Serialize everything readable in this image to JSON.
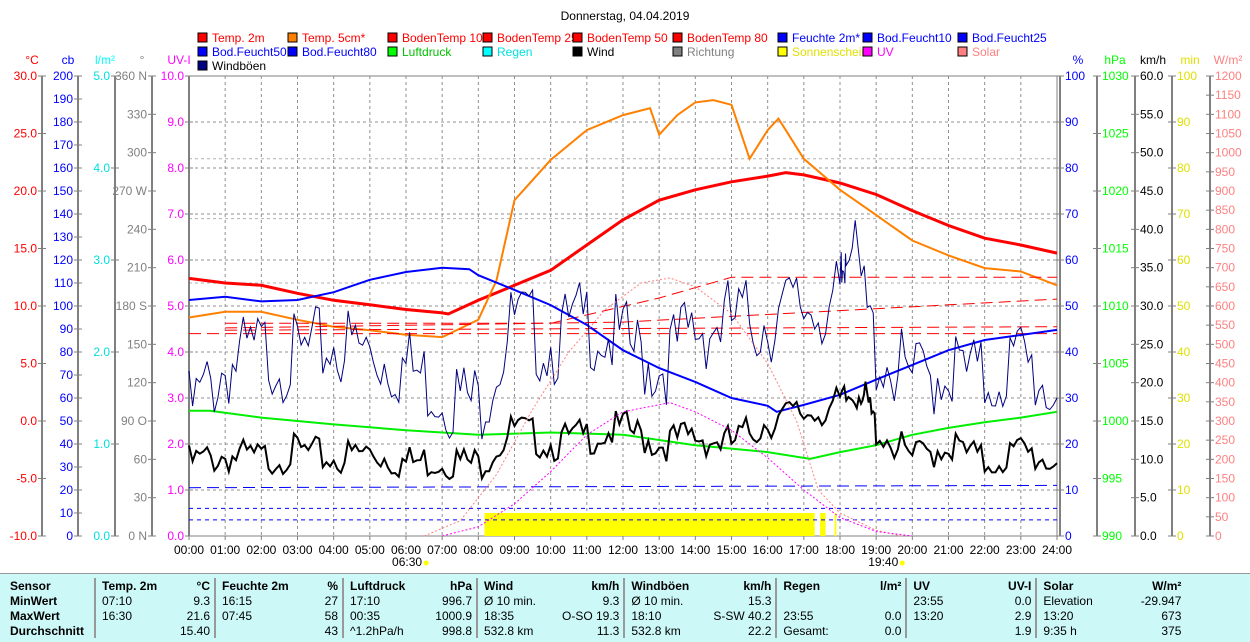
{
  "title": "Donnerstag, 04.04.2019",
  "legend": [
    {
      "label": "Temp. 2m",
      "color": "#ff0000",
      "text": "#ff0000"
    },
    {
      "label": "Temp. 5cm*",
      "color": "#ff8000",
      "text": "#ff0000"
    },
    {
      "label": "BodenTemp 10",
      "color": "#ff0000",
      "text": "#ff0000"
    },
    {
      "label": "BodenTemp 25",
      "color": "#ff0000",
      "text": "#ff0000"
    },
    {
      "label": "BodenTemp 50",
      "color": "#ff0000",
      "text": "#ff0000"
    },
    {
      "label": "BodenTemp 80",
      "color": "#ff0000",
      "text": "#ff0000"
    },
    {
      "label": "Feuchte 2m*",
      "color": "#0000ff",
      "text": "#0000ff"
    },
    {
      "label": "Bod.Feucht10",
      "color": "#0000ff",
      "text": "#0000ff"
    },
    {
      "label": "Bod.Feucht25",
      "color": "#0000ff",
      "text": "#0000ff"
    },
    {
      "label": "Bod.Feucht50",
      "color": "#0000ff",
      "text": "#0000ff"
    },
    {
      "label": "Bod.Feucht80",
      "color": "#0000ff",
      "text": "#0000ff"
    },
    {
      "label": "Luftdruck",
      "color": "#00ff00",
      "text": "#00c000"
    },
    {
      "label": "Regen",
      "color": "#00ffff",
      "text": "#00e0e0"
    },
    {
      "label": "Wind",
      "color": "#000000",
      "text": "#000000"
    },
    {
      "label": "Richtung",
      "color": "#808080",
      "text": "#808080"
    },
    {
      "label": "Sonnenschein",
      "color": "#ffff00",
      "text": "#e0e000"
    },
    {
      "label": "UV",
      "color": "#ff00ff",
      "text": "#ff00ff"
    },
    {
      "label": "Solar",
      "color": "#ff8080",
      "text": "#ff8080"
    },
    {
      "label": "Windböen",
      "color": "#000080",
      "text": "#000000"
    }
  ],
  "chart_data": {
    "type": "line",
    "title": "Donnerstag, 04.04.2019",
    "x_ticks": [
      "00:00",
      "01:00",
      "02:00",
      "03:00",
      "04:00",
      "05:00",
      "06:00",
      "07:00",
      "08:00",
      "09:00",
      "10:00",
      "11:00",
      "12:00",
      "13:00",
      "14:00",
      "15:00",
      "16:00",
      "17:00",
      "18:00",
      "19:00",
      "20:00",
      "21:00",
      "22:00",
      "23:00",
      "24:00"
    ],
    "sunrise": "06:30",
    "sunset": "19:40",
    "axes": {
      "temp": {
        "unit": "°C",
        "min": -10,
        "max": 30,
        "step": 5,
        "dec": 1,
        "color": "#ff0000"
      },
      "cb": {
        "unit": "cb",
        "min": 0,
        "max": 200,
        "step": 10,
        "dec": 0,
        "color": "#0000ff"
      },
      "rain": {
        "unit": "l/m²",
        "min": 0,
        "max": 5,
        "step": 1,
        "dec": 1,
        "color": "#00ffff"
      },
      "dir": {
        "unit": "°",
        "min": 0,
        "max": 360,
        "step": 30,
        "dec": 0,
        "color": "#808080",
        "compass": {
          "0": "N",
          "90": "O",
          "180": "S",
          "270": "W",
          "360": "N"
        }
      },
      "uv": {
        "unit": "UV-I",
        "min": 0,
        "max": 10,
        "step": 1,
        "dec": 1,
        "color": "#ff00ff"
      },
      "hum": {
        "unit": "%",
        "min": 0,
        "max": 100,
        "step": 10,
        "dec": 0,
        "color": "#0000ff"
      },
      "press": {
        "unit": "hPa",
        "min": 990,
        "max": 1030,
        "step": 5,
        "dec": 0,
        "color": "#00ff00"
      },
      "wind": {
        "unit": "km/h",
        "min": 0,
        "max": 60,
        "step": 5,
        "dec": 1,
        "color": "#000000"
      },
      "sun": {
        "unit": "min",
        "min": 0,
        "max": 100,
        "step": 10,
        "dec": 0,
        "color": "#ffff00"
      },
      "solar": {
        "unit": "W/m²",
        "min": 0,
        "max": 1200,
        "step": 50,
        "dec": 0,
        "color": "#ff8080"
      }
    },
    "series": [
      {
        "name": "Temp. 2m",
        "axis": "temp",
        "color": "#ff0000",
        "width": 3,
        "x": [
          0,
          1,
          2,
          3,
          4,
          5,
          6,
          7,
          7.17,
          8,
          9,
          10,
          11,
          12,
          13,
          14,
          15,
          16,
          16.5,
          17,
          18,
          19,
          20,
          21,
          22,
          23,
          24
        ],
        "y": [
          12.4,
          12.0,
          11.8,
          11.1,
          10.5,
          10.1,
          9.7,
          9.4,
          9.3,
          10.5,
          11.8,
          13.1,
          15.3,
          17.5,
          19.2,
          20.1,
          20.8,
          21.3,
          21.6,
          21.4,
          20.7,
          19.7,
          18.3,
          17.0,
          15.9,
          15.3,
          14.6
        ]
      },
      {
        "name": "Temp. 5cm*",
        "axis": "temp",
        "color": "#ff8000",
        "width": 2,
        "x": [
          0,
          1,
          2,
          3,
          4,
          5,
          6,
          7,
          8,
          8.5,
          9,
          10,
          11,
          12,
          12.75,
          13,
          13.5,
          14,
          14.5,
          15,
          15.5,
          16,
          16.3,
          17,
          18,
          19,
          20,
          21,
          22,
          23,
          24
        ],
        "y": [
          9.0,
          9.5,
          9.5,
          8.8,
          8.2,
          7.9,
          7.5,
          7.3,
          8.8,
          12.2,
          19.2,
          22.7,
          25.3,
          26.6,
          27.2,
          24.9,
          26.6,
          27.7,
          27.9,
          27.5,
          22.8,
          25.3,
          26.3,
          22.8,
          20.1,
          17.9,
          15.7,
          14.4,
          13.3,
          13.0,
          11.8
        ]
      },
      {
        "name": "BodenTemp 10",
        "axis": "temp",
        "color": "#ff0000",
        "width": 1,
        "dash": "12,6",
        "x": [
          1,
          10,
          13,
          15,
          24
        ],
        "y": [
          8.5,
          8.5,
          10.7,
          12.5,
          12.5
        ]
      },
      {
        "name": "BodenTemp 25",
        "axis": "temp",
        "color": "#ff0000",
        "width": 1,
        "dash": "12,6",
        "x": [
          1,
          12,
          24
        ],
        "y": [
          8.1,
          8.6,
          10.6
        ]
      },
      {
        "name": "BodenTemp 50",
        "axis": "temp",
        "color": "#ff0000",
        "width": 1,
        "dash": "12,6",
        "x": [
          1,
          24
        ],
        "y": [
          7.9,
          8.2
        ]
      },
      {
        "name": "BodenTemp 80",
        "axis": "temp",
        "color": "#ff0000",
        "width": 1,
        "dash": "12,6",
        "x": [
          0,
          24
        ],
        "y": [
          7.6,
          7.6
        ]
      },
      {
        "name": "Feuchte 2m*",
        "axis": "hum",
        "color": "#0000ff",
        "width": 2,
        "x": [
          0,
          1,
          2,
          3,
          4,
          5,
          6,
          7,
          7.75,
          8,
          9,
          10,
          11,
          12,
          13,
          14,
          15,
          16,
          16.25,
          17,
          18,
          19,
          20,
          21,
          22,
          23,
          24
        ],
        "y": [
          51.3,
          52,
          51,
          51.3,
          53,
          55.7,
          57.4,
          58.3,
          58,
          56.7,
          53.5,
          50.2,
          45.9,
          40.4,
          36.5,
          33.5,
          30,
          28.3,
          27,
          28.5,
          30.7,
          34,
          37.2,
          40.4,
          42.6,
          43.7,
          44.8
        ]
      },
      {
        "name": "Bod.Feucht10",
        "axis": "cb",
        "color": "#0000ff",
        "width": 1,
        "dash": "12,6",
        "x": [
          0,
          24
        ],
        "y": [
          21,
          22
        ]
      },
      {
        "name": "Bod.Feucht50",
        "axis": "cb",
        "color": "#0000ff",
        "width": 1,
        "dash": "4,4",
        "x": [
          0,
          24
        ],
        "y": [
          12,
          12
        ]
      },
      {
        "name": "Bod.Feucht80",
        "axis": "cb",
        "color": "#0000ff",
        "width": 1,
        "dash": "4,4",
        "x": [
          0,
          24
        ],
        "y": [
          7,
          7
        ]
      },
      {
        "name": "Luftdruck",
        "axis": "press",
        "color": "#00ee00",
        "width": 2,
        "x": [
          0,
          0.58,
          2,
          4,
          6,
          8,
          10,
          12,
          14,
          16,
          17.17,
          18,
          19,
          20,
          21,
          22,
          23,
          24
        ],
        "y": [
          1000.9,
          1000.9,
          1000.3,
          999.7,
          999.2,
          998.8,
          999,
          998.8,
          997.9,
          997.3,
          996.7,
          997.3,
          997.9,
          998.8,
          999.4,
          999.9,
          1000.3,
          1000.8
        ]
      },
      {
        "name": "Windböen",
        "axis": "wind",
        "color": "#000080",
        "width": 1,
        "noise": 6,
        "x": [
          0,
          1,
          2,
          3,
          4,
          5,
          6,
          7,
          8,
          9,
          10,
          11,
          12,
          13,
          14,
          15,
          16,
          17,
          18,
          18.17,
          19,
          20,
          21,
          22,
          23,
          24
        ],
        "y": [
          16,
          22,
          24,
          23,
          25,
          24,
          22,
          19,
          17,
          28,
          25,
          28,
          25,
          22,
          27,
          28,
          28,
          30,
          30,
          40.2,
          24,
          20,
          22,
          20,
          23,
          18
        ]
      },
      {
        "name": "Wind",
        "axis": "wind",
        "color": "#000000",
        "width": 2,
        "noise": 2.5,
        "x": [
          0,
          1,
          2,
          3,
          4,
          5,
          6,
          7,
          8,
          9,
          10,
          11,
          12,
          13,
          14,
          15,
          16,
          17,
          18,
          18.58,
          19,
          20,
          21,
          22,
          23,
          24
        ],
        "y": [
          9.5,
          10.5,
          10,
          11,
          10,
          11,
          9.5,
          10,
          9.3,
          14,
          12,
          13,
          14,
          12,
          13,
          12,
          15,
          16,
          17,
          19.3,
          14,
          10,
          12,
          9.5,
          11,
          9.5
        ]
      },
      {
        "name": "Solar",
        "axis": "solar",
        "color": "#ff8080",
        "width": 1,
        "dash": "2,2",
        "x": [
          6.5,
          7.5,
          8.5,
          9.5,
          10.5,
          11.5,
          12.5,
          13.3,
          14,
          15,
          16,
          16.8,
          17.4,
          18,
          19,
          19.7
        ],
        "y": [
          0,
          40,
          160,
          330,
          480,
          590,
          660,
          673,
          650,
          580,
          450,
          300,
          120,
          60,
          15,
          0
        ]
      },
      {
        "name": "UV",
        "axis": "uv",
        "color": "#ff00ff",
        "width": 1,
        "dash": "2,2",
        "x": [
          7,
          8,
          9,
          10,
          11,
          12,
          13.3,
          14,
          15,
          16,
          17,
          17.5,
          18,
          19,
          20
        ],
        "y": [
          0,
          0.2,
          0.7,
          1.4,
          2.2,
          2.7,
          2.9,
          2.7,
          2.3,
          1.7,
          1.0,
          0.7,
          0.4,
          0.1,
          0
        ]
      }
    ],
    "sunshine": {
      "axis": "sun",
      "color": "#ffff00",
      "blocks": [
        [
          8.17,
          17.3
        ],
        [
          17.45,
          17.6
        ],
        [
          17.85,
          17.9
        ]
      ],
      "value": 5
    },
    "stats": {
      "headers": [
        [
          "Sensor",
          ""
        ],
        [
          "Temp. 2m",
          "°C"
        ],
        [
          "Feuchte 2m",
          "%"
        ],
        [
          "Luftdruck",
          "hPa"
        ],
        [
          "Wind",
          "km/h"
        ],
        [
          "Windböen",
          "km/h"
        ],
        [
          "Regen",
          "l/m²"
        ],
        [
          "UV",
          "UV-I"
        ],
        [
          "Solar",
          "W/m²"
        ]
      ],
      "rows": [
        {
          "label": "MinWert",
          "cells": [
            [
              "07:10",
              "9.3"
            ],
            [
              "16:15",
              "27"
            ],
            [
              "17:10",
              "996.7"
            ],
            [
              "Ø 10 min.",
              "9.3"
            ],
            [
              "Ø 10 min.",
              "15.3"
            ],
            [
              "",
              ""
            ],
            [
              "23:55",
              "0.0"
            ],
            [
              "Elevation",
              "-29.947"
            ]
          ]
        },
        {
          "label": "MaxWert",
          "cells": [
            [
              "16:30",
              "21.6"
            ],
            [
              "07:45",
              "58"
            ],
            [
              "00:35",
              "1000.9"
            ],
            [
              "18:35",
              "O-SO 19.3"
            ],
            [
              "18:10",
              "S-SW 40.2"
            ],
            [
              "23:55",
              "0.0"
            ],
            [
              "13:20",
              "2.9"
            ],
            [
              "13:20",
              "673"
            ]
          ]
        },
        {
          "label": "Durchschnitt",
          "cells": [
            [
              "",
              "15.40"
            ],
            [
              "",
              "43"
            ],
            [
              "^1.2hPa/h",
              "998.8"
            ],
            [
              "532.8 km",
              "11.3"
            ],
            [
              "532.8 km",
              "22.2"
            ],
            [
              "Gesamt:",
              "0.0"
            ],
            [
              "",
              "1.9"
            ],
            [
              "9:35 h",
              "375"
            ]
          ]
        }
      ]
    }
  }
}
